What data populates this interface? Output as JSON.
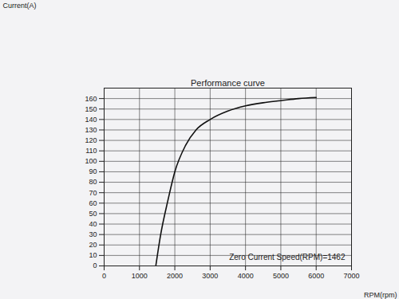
{
  "chart_data": {
    "type": "line",
    "title": "Performance curve",
    "y_label": "Current(A)",
    "x_label": "RPM(rpm)",
    "annotations": [
      "Zero Current Speed(RPM)=1462"
    ],
    "x": [
      1462,
      1600,
      1800,
      2000,
      2300,
      2600,
      3000,
      3500,
      4000,
      4500,
      5000,
      5500,
      6000
    ],
    "values": [
      0,
      30,
      62,
      90,
      115,
      130,
      140,
      148,
      153,
      156,
      158,
      160,
      161
    ],
    "color": "#111111",
    "xlim": [
      0,
      7000
    ],
    "xticks": [
      0,
      1000,
      2000,
      3000,
      4000,
      5000,
      6000,
      7000
    ],
    "ylim": [
      0,
      170
    ],
    "yticks": [
      0,
      10,
      20,
      30,
      40,
      50,
      60,
      70,
      80,
      90,
      100,
      110,
      120,
      130,
      140,
      150,
      160
    ],
    "grid": true
  }
}
